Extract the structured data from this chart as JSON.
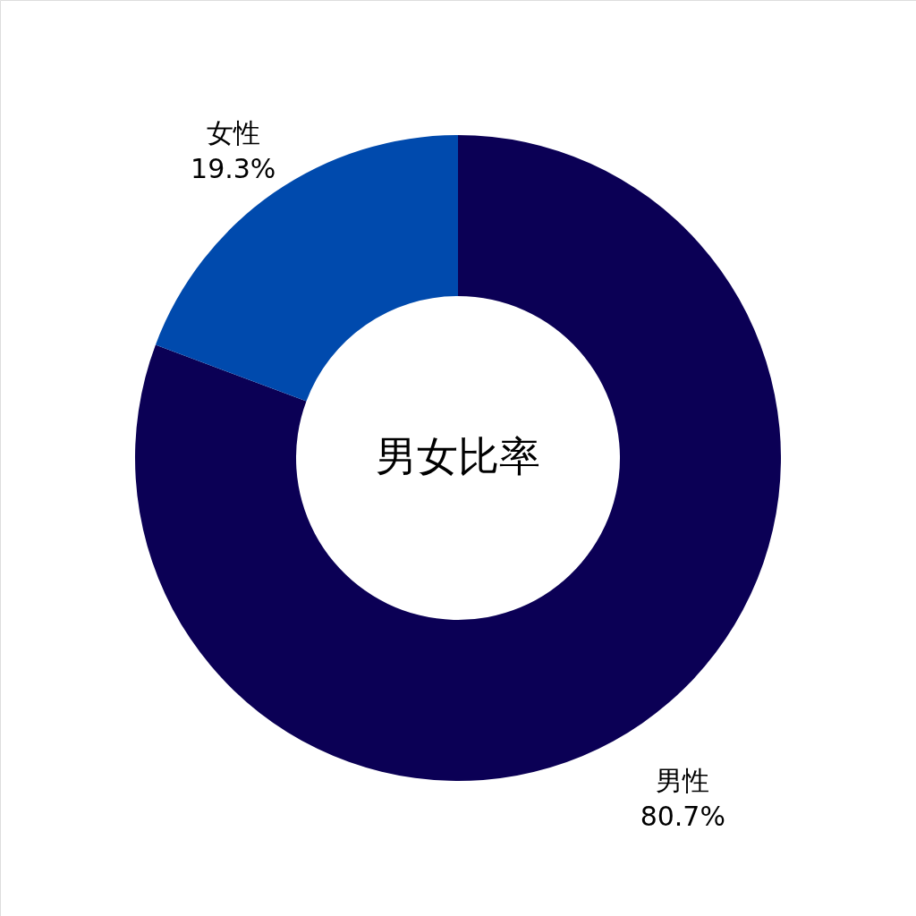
{
  "chart_data": {
    "type": "donut",
    "title": "男女比率",
    "categories": [
      "男性",
      "女性"
    ],
    "values": [
      80.7,
      19.3
    ],
    "value_labels": [
      "80.7%",
      "19.3%"
    ],
    "colors": [
      "#0b0055",
      "#004aad"
    ]
  }
}
